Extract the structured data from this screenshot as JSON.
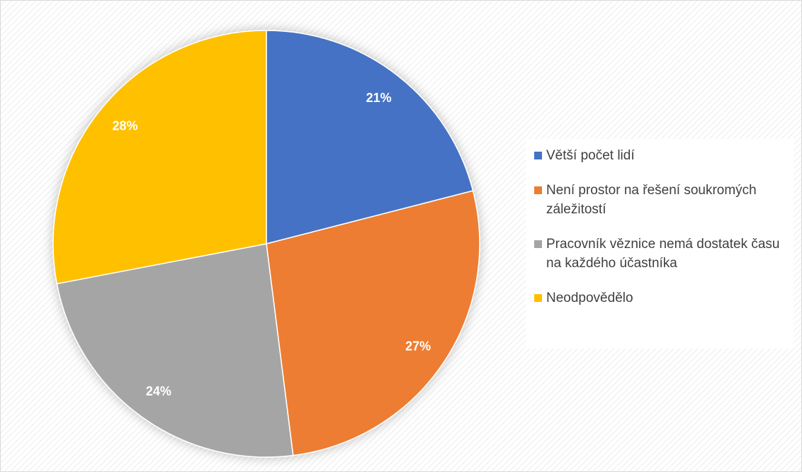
{
  "chart_data": {
    "type": "pie",
    "categories": [
      "Větší počet lidí",
      "Není prostor na řešení soukromých záležitostí",
      "Pracovník věznice nemá dostatek času na každého účastníka",
      "Neodpovědělo"
    ],
    "values": [
      21,
      27,
      24,
      28
    ],
    "value_labels": [
      "21%",
      "27%",
      "24%",
      "28%"
    ],
    "colors": [
      "#4472c4",
      "#ed7d31",
      "#a5a5a5",
      "#ffc000"
    ],
    "legend": "right"
  }
}
